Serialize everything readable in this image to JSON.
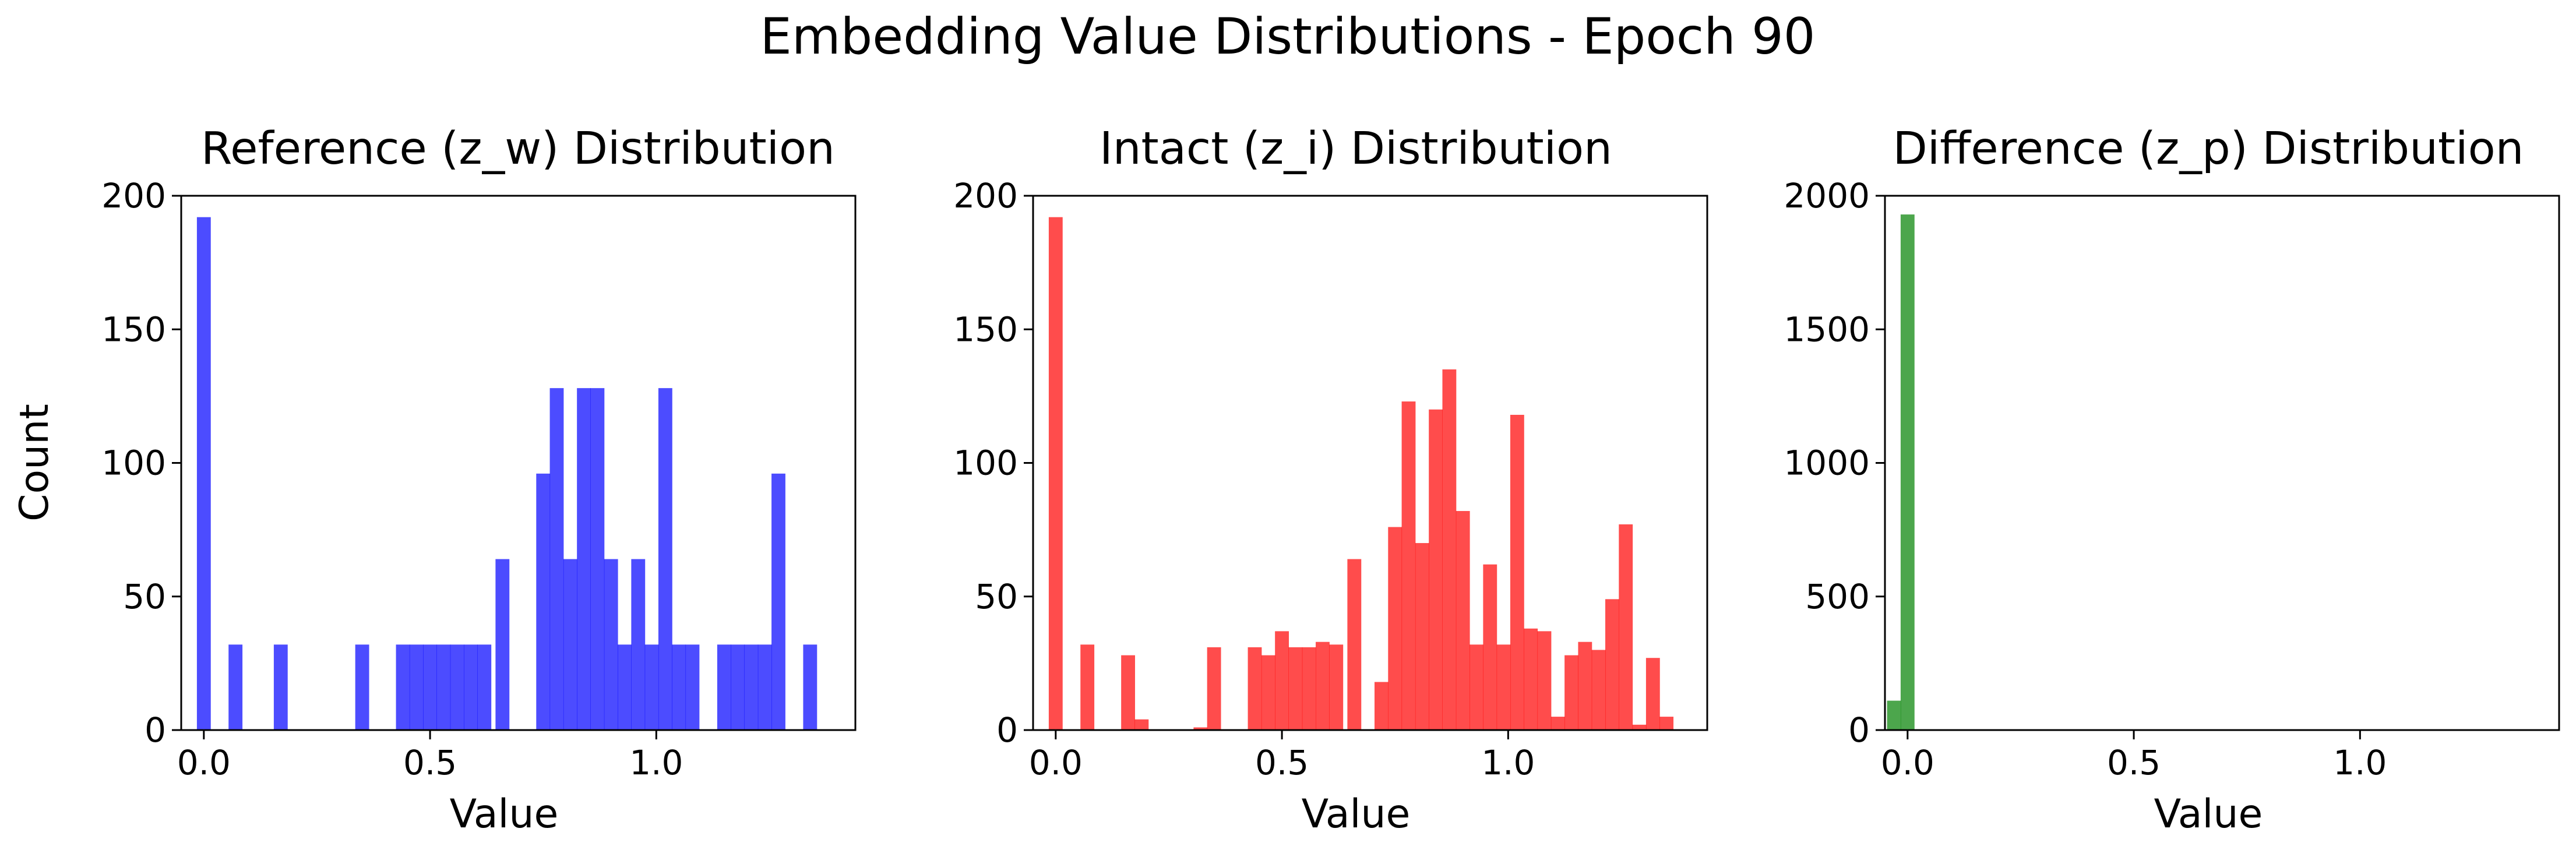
{
  "figure": {
    "title": "Embedding Value Distributions - Epoch 90"
  },
  "chart_data": [
    {
      "type": "bar",
      "title": "Reference (z_w) Distribution",
      "xlabel": "Value",
      "ylabel": "Count",
      "color": "#0000ff",
      "xlim": [
        -0.05,
        1.44
      ],
      "ylim": [
        0,
        200
      ],
      "xticks": [
        "0.0",
        "0.5",
        "1.0"
      ],
      "yticks": [
        "0",
        "50",
        "100",
        "150",
        "200"
      ],
      "bin_width": 0.0307,
      "bins": [
        {
          "x": 0.0,
          "count": 192
        },
        {
          "x": 0.07,
          "count": 32
        },
        {
          "x": 0.17,
          "count": 32
        },
        {
          "x": 0.35,
          "count": 32
        },
        {
          "x": 0.44,
          "count": 32
        },
        {
          "x": 0.47,
          "count": 32
        },
        {
          "x": 0.5,
          "count": 32
        },
        {
          "x": 0.53,
          "count": 32
        },
        {
          "x": 0.56,
          "count": 32
        },
        {
          "x": 0.59,
          "count": 32
        },
        {
          "x": 0.62,
          "count": 32
        },
        {
          "x": 0.66,
          "count": 64
        },
        {
          "x": 0.75,
          "count": 96
        },
        {
          "x": 0.78,
          "count": 128
        },
        {
          "x": 0.81,
          "count": 64
        },
        {
          "x": 0.84,
          "count": 128
        },
        {
          "x": 0.87,
          "count": 128
        },
        {
          "x": 0.9,
          "count": 64
        },
        {
          "x": 0.93,
          "count": 32
        },
        {
          "x": 0.96,
          "count": 64
        },
        {
          "x": 0.99,
          "count": 32
        },
        {
          "x": 1.02,
          "count": 128
        },
        {
          "x": 1.05,
          "count": 32
        },
        {
          "x": 1.08,
          "count": 32
        },
        {
          "x": 1.15,
          "count": 32
        },
        {
          "x": 1.18,
          "count": 32
        },
        {
          "x": 1.21,
          "count": 32
        },
        {
          "x": 1.24,
          "count": 32
        },
        {
          "x": 1.27,
          "count": 96
        },
        {
          "x": 1.34,
          "count": 32
        }
      ]
    },
    {
      "type": "bar",
      "title": "Intact (z_i) Distribution",
      "xlabel": "Value",
      "ylabel": "",
      "color": "#ff0000",
      "xlim": [
        -0.05,
        1.44
      ],
      "ylim": [
        0,
        200
      ],
      "xticks": [
        "0.0",
        "0.5",
        "1.0"
      ],
      "yticks": [
        "0",
        "50",
        "100",
        "150",
        "200"
      ],
      "bin_width": 0.0307,
      "bins": [
        {
          "x": 0.0,
          "count": 192
        },
        {
          "x": 0.07,
          "count": 32
        },
        {
          "x": 0.16,
          "count": 28
        },
        {
          "x": 0.19,
          "count": 4
        },
        {
          "x": 0.32,
          "count": 1
        },
        {
          "x": 0.35,
          "count": 31
        },
        {
          "x": 0.44,
          "count": 31
        },
        {
          "x": 0.47,
          "count": 28
        },
        {
          "x": 0.5,
          "count": 37
        },
        {
          "x": 0.53,
          "count": 31
        },
        {
          "x": 0.56,
          "count": 31
        },
        {
          "x": 0.59,
          "count": 33
        },
        {
          "x": 0.62,
          "count": 32
        },
        {
          "x": 0.66,
          "count": 64
        },
        {
          "x": 0.72,
          "count": 18
        },
        {
          "x": 0.75,
          "count": 76
        },
        {
          "x": 0.78,
          "count": 123
        },
        {
          "x": 0.81,
          "count": 70
        },
        {
          "x": 0.84,
          "count": 120
        },
        {
          "x": 0.87,
          "count": 135
        },
        {
          "x": 0.9,
          "count": 82
        },
        {
          "x": 0.93,
          "count": 32
        },
        {
          "x": 0.96,
          "count": 62
        },
        {
          "x": 0.99,
          "count": 32
        },
        {
          "x": 1.02,
          "count": 118
        },
        {
          "x": 1.05,
          "count": 38
        },
        {
          "x": 1.08,
          "count": 37
        },
        {
          "x": 1.11,
          "count": 5
        },
        {
          "x": 1.14,
          "count": 28
        },
        {
          "x": 1.17,
          "count": 33
        },
        {
          "x": 1.2,
          "count": 30
        },
        {
          "x": 1.23,
          "count": 49
        },
        {
          "x": 1.26,
          "count": 77
        },
        {
          "x": 1.29,
          "count": 2
        },
        {
          "x": 1.32,
          "count": 27
        },
        {
          "x": 1.35,
          "count": 5
        }
      ]
    },
    {
      "type": "bar",
      "title": "Difference (z_p) Distribution",
      "xlabel": "Value",
      "ylabel": "",
      "color": "#008000",
      "xlim": [
        -0.05,
        1.44
      ],
      "ylim": [
        0,
        2000
      ],
      "xticks": [
        "0.0",
        "0.5",
        "1.0"
      ],
      "yticks": [
        "0",
        "500",
        "1000",
        "1500",
        "2000"
      ],
      "bin_width": 0.0307,
      "bins": [
        {
          "x": -0.03,
          "count": 110
        },
        {
          "x": 0.0,
          "count": 1930
        },
        {
          "x": 0.03,
          "count": 3
        }
      ]
    }
  ]
}
